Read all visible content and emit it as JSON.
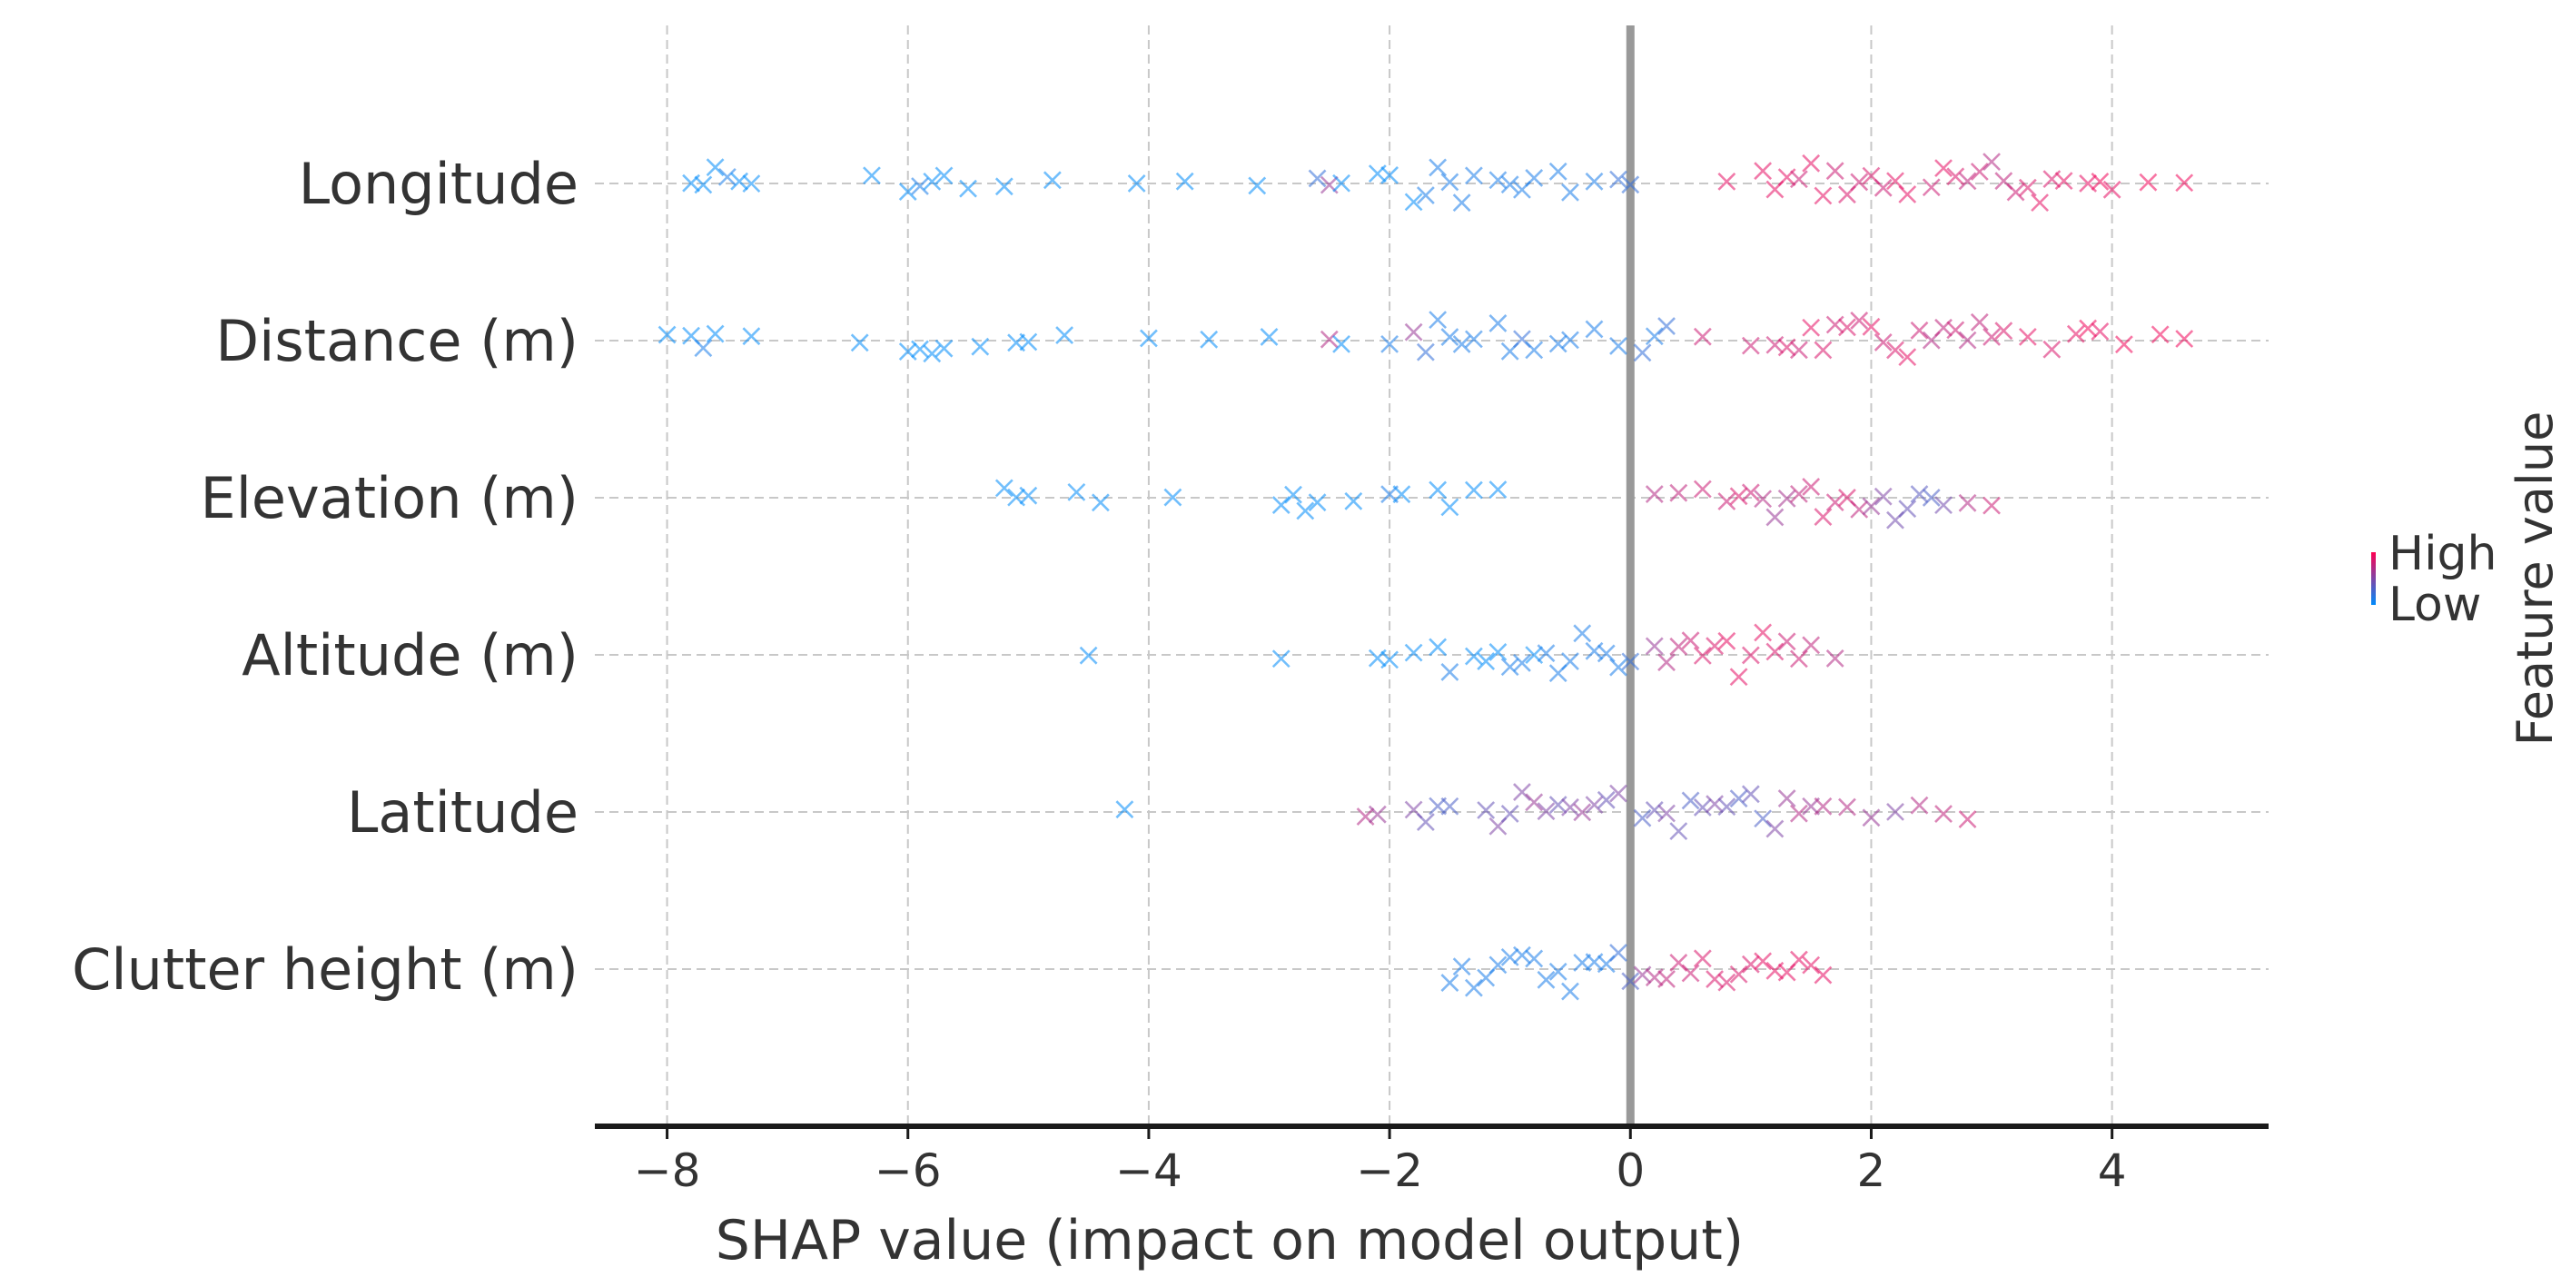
{
  "chart_data": {
    "type": "scatter",
    "subtype": "shap-beeswarm",
    "marker": "x",
    "xlabel": "SHAP value (impact on model output)",
    "xlim": [
      -8.6,
      5.3
    ],
    "xticks": [
      -8,
      -6,
      -4,
      -2,
      0,
      2,
      4
    ],
    "xtick_labels": [
      "−8",
      "−6",
      "−4",
      "−2",
      "0",
      "2",
      "4"
    ],
    "grid": true,
    "zero_line": true,
    "colors": {
      "high": "#ff0052",
      "low": "#008bfb",
      "grid": "#c8c8c8",
      "zero": "#999999",
      "axis": "#1a1a1a",
      "text": "#333333"
    },
    "legend": {
      "title": "Feature value",
      "high_label": "High",
      "low_label": "Low",
      "position": "right"
    },
    "features": [
      {
        "name": "Longitude",
        "points": [
          [
            -7.8,
            0
          ],
          [
            -7.7,
            0
          ],
          [
            -7.6,
            0
          ],
          [
            -7.5,
            0.1
          ],
          [
            -7.4,
            0
          ],
          [
            -7.3,
            0
          ],
          [
            -6.3,
            0
          ],
          [
            -6.0,
            0
          ],
          [
            -5.9,
            0.1
          ],
          [
            -5.8,
            0
          ],
          [
            -5.7,
            0
          ],
          [
            -5.5,
            0
          ],
          [
            -5.2,
            0
          ],
          [
            -4.8,
            0
          ],
          [
            -4.1,
            0
          ],
          [
            -3.7,
            0
          ],
          [
            -3.1,
            0
          ],
          [
            -2.6,
            0.2
          ],
          [
            -2.5,
            0.6
          ],
          [
            -2.4,
            0
          ],
          [
            -2.1,
            0
          ],
          [
            -2.0,
            0
          ],
          [
            -1.8,
            0
          ],
          [
            -1.7,
            0.1
          ],
          [
            -1.6,
            0.1
          ],
          [
            -1.5,
            0.1
          ],
          [
            -1.4,
            0.1
          ],
          [
            -1.3,
            0.1
          ],
          [
            -1.1,
            0.1
          ],
          [
            -1.0,
            0.1
          ],
          [
            -0.9,
            0.1
          ],
          [
            -0.8,
            0.1
          ],
          [
            -0.6,
            0.1
          ],
          [
            -0.5,
            0.1
          ],
          [
            -0.3,
            0.1
          ],
          [
            -0.1,
            0.2
          ],
          [
            0.0,
            0.2
          ],
          [
            0.8,
            0.9
          ],
          [
            1.1,
            0.9
          ],
          [
            1.2,
            0.9
          ],
          [
            1.3,
            0.9
          ],
          [
            1.4,
            0.8
          ],
          [
            1.5,
            0.9
          ],
          [
            1.6,
            0.9
          ],
          [
            1.7,
            0.8
          ],
          [
            1.8,
            0.85
          ],
          [
            1.9,
            0.8
          ],
          [
            2.0,
            0.85
          ],
          [
            2.1,
            0.8
          ],
          [
            2.2,
            0.9
          ],
          [
            2.3,
            0.9
          ],
          [
            2.5,
            0.8
          ],
          [
            2.6,
            0.9
          ],
          [
            2.7,
            0.85
          ],
          [
            2.8,
            0.75
          ],
          [
            2.9,
            0.8
          ],
          [
            3.0,
            0.7
          ],
          [
            3.1,
            0.75
          ],
          [
            3.2,
            0.8
          ],
          [
            3.3,
            0.85
          ],
          [
            3.4,
            0.9
          ],
          [
            3.5,
            0.85
          ],
          [
            3.6,
            0.9
          ],
          [
            3.8,
            0.9
          ],
          [
            3.9,
            0.95
          ],
          [
            4.0,
            0.9
          ],
          [
            4.3,
            0.95
          ],
          [
            4.6,
            0.95
          ]
        ]
      },
      {
        "name": "Distance (m)",
        "points": [
          [
            -8.0,
            0
          ],
          [
            -7.8,
            0
          ],
          [
            -7.7,
            0.1
          ],
          [
            -7.6,
            0
          ],
          [
            -7.3,
            0
          ],
          [
            -6.4,
            0
          ],
          [
            -6.0,
            0
          ],
          [
            -5.9,
            0
          ],
          [
            -5.8,
            0
          ],
          [
            -5.7,
            0
          ],
          [
            -5.4,
            0
          ],
          [
            -5.1,
            0
          ],
          [
            -5.0,
            0
          ],
          [
            -4.7,
            0
          ],
          [
            -4.0,
            0
          ],
          [
            -3.5,
            0
          ],
          [
            -3.0,
            0
          ],
          [
            -2.5,
            0.7
          ],
          [
            -2.4,
            0
          ],
          [
            -2.0,
            0.1
          ],
          [
            -1.8,
            0.6
          ],
          [
            -1.7,
            0.2
          ],
          [
            -1.6,
            0.1
          ],
          [
            -1.5,
            0.1
          ],
          [
            -1.4,
            0.1
          ],
          [
            -1.3,
            0.1
          ],
          [
            -1.1,
            0.1
          ],
          [
            -1.0,
            0.1
          ],
          [
            -0.9,
            0.2
          ],
          [
            -0.8,
            0.1
          ],
          [
            -0.6,
            0.1
          ],
          [
            -0.5,
            0.1
          ],
          [
            -0.3,
            0.1
          ],
          [
            -0.1,
            0.1
          ],
          [
            0.1,
            0.2
          ],
          [
            0.2,
            0.1
          ],
          [
            0.3,
            0.2
          ],
          [
            0.6,
            0.8
          ],
          [
            1.0,
            0.8
          ],
          [
            1.2,
            0.8
          ],
          [
            1.3,
            0.85
          ],
          [
            1.4,
            0.8
          ],
          [
            1.5,
            0.9
          ],
          [
            1.6,
            0.85
          ],
          [
            1.7,
            0.8
          ],
          [
            1.8,
            0.85
          ],
          [
            1.9,
            0.8
          ],
          [
            2.0,
            0.9
          ],
          [
            2.1,
            0.8
          ],
          [
            2.2,
            0.85
          ],
          [
            2.3,
            0.9
          ],
          [
            2.4,
            0.8
          ],
          [
            2.5,
            0.7
          ],
          [
            2.6,
            0.75
          ],
          [
            2.7,
            0.8
          ],
          [
            2.8,
            0.7
          ],
          [
            2.9,
            0.75
          ],
          [
            3.0,
            0.8
          ],
          [
            3.1,
            0.85
          ],
          [
            3.3,
            0.9
          ],
          [
            3.5,
            0.85
          ],
          [
            3.7,
            0.9
          ],
          [
            3.8,
            0.95
          ],
          [
            3.9,
            0.9
          ],
          [
            4.1,
            0.95
          ],
          [
            4.4,
            0.95
          ],
          [
            4.6,
            0.95
          ]
        ]
      },
      {
        "name": "Elevation (m)",
        "points": [
          [
            -5.2,
            0
          ],
          [
            -5.1,
            0
          ],
          [
            -5.0,
            0
          ],
          [
            -4.6,
            0
          ],
          [
            -4.4,
            0
          ],
          [
            -3.8,
            0
          ],
          [
            -2.9,
            0
          ],
          [
            -2.8,
            0
          ],
          [
            -2.7,
            0
          ],
          [
            -2.6,
            0
          ],
          [
            -2.3,
            0
          ],
          [
            -2.0,
            0.1
          ],
          [
            -1.9,
            0
          ],
          [
            -1.6,
            0
          ],
          [
            -1.5,
            0
          ],
          [
            -1.3,
            0
          ],
          [
            -1.1,
            0
          ],
          [
            0.2,
            0.7
          ],
          [
            0.4,
            0.75
          ],
          [
            0.6,
            0.8
          ],
          [
            0.8,
            0.8
          ],
          [
            0.9,
            0.85
          ],
          [
            1.0,
            0.8
          ],
          [
            1.1,
            0.7
          ],
          [
            1.2,
            0.6
          ],
          [
            1.3,
            0.65
          ],
          [
            1.4,
            0.75
          ],
          [
            1.5,
            0.8
          ],
          [
            1.6,
            0.85
          ],
          [
            1.7,
            0.8
          ],
          [
            1.8,
            0.85
          ],
          [
            1.9,
            0.75
          ],
          [
            2.0,
            0.6
          ],
          [
            2.1,
            0.5
          ],
          [
            2.2,
            0.45
          ],
          [
            2.3,
            0.4
          ],
          [
            2.4,
            0.35
          ],
          [
            2.5,
            0.3
          ],
          [
            2.6,
            0.45
          ],
          [
            2.8,
            0.7
          ],
          [
            3.0,
            0.8
          ]
        ]
      },
      {
        "name": "Altitude (m)",
        "points": [
          [
            -4.5,
            0
          ],
          [
            -2.9,
            0
          ],
          [
            -2.1,
            0
          ],
          [
            -2.0,
            0
          ],
          [
            -1.8,
            0
          ],
          [
            -1.6,
            0
          ],
          [
            -1.5,
            0.1
          ],
          [
            -1.3,
            0
          ],
          [
            -1.2,
            0
          ],
          [
            -1.1,
            0
          ],
          [
            -1.0,
            0.1
          ],
          [
            -0.9,
            0.1
          ],
          [
            -0.8,
            0
          ],
          [
            -0.7,
            0.1
          ],
          [
            -0.6,
            0.1
          ],
          [
            -0.5,
            0.1
          ],
          [
            -0.4,
            0.1
          ],
          [
            -0.3,
            0.1
          ],
          [
            -0.2,
            0.1
          ],
          [
            -0.1,
            0.1
          ],
          [
            0.0,
            0.2
          ],
          [
            0.2,
            0.6
          ],
          [
            0.3,
            0.7
          ],
          [
            0.4,
            0.75
          ],
          [
            0.5,
            0.8
          ],
          [
            0.6,
            0.85
          ],
          [
            0.7,
            0.85
          ],
          [
            0.8,
            0.9
          ],
          [
            0.9,
            0.9
          ],
          [
            1.0,
            0.85
          ],
          [
            1.1,
            0.9
          ],
          [
            1.2,
            0.85
          ],
          [
            1.3,
            0.8
          ],
          [
            1.4,
            0.8
          ],
          [
            1.5,
            0.75
          ],
          [
            1.7,
            0.7
          ]
        ]
      },
      {
        "name": "Latitude",
        "points": [
          [
            -4.2,
            0
          ],
          [
            -2.2,
            0.7
          ],
          [
            -2.1,
            0.6
          ],
          [
            -1.8,
            0.5
          ],
          [
            -1.7,
            0.4
          ],
          [
            -1.6,
            0.3
          ],
          [
            -1.5,
            0.3
          ],
          [
            -1.2,
            0.4
          ],
          [
            -1.1,
            0.5
          ],
          [
            -1.0,
            0.4
          ],
          [
            -0.9,
            0.5
          ],
          [
            -0.8,
            0.6
          ],
          [
            -0.7,
            0.5
          ],
          [
            -0.6,
            0.4
          ],
          [
            -0.5,
            0.5
          ],
          [
            -0.4,
            0.6
          ],
          [
            -0.3,
            0.5
          ],
          [
            -0.2,
            0.4
          ],
          [
            -0.1,
            0.5
          ],
          [
            0.1,
            0.3
          ],
          [
            0.2,
            0.4
          ],
          [
            0.3,
            0.5
          ],
          [
            0.4,
            0.4
          ],
          [
            0.5,
            0.3
          ],
          [
            0.6,
            0.4
          ],
          [
            0.7,
            0.5
          ],
          [
            0.8,
            0.4
          ],
          [
            0.9,
            0.3
          ],
          [
            1.0,
            0.4
          ],
          [
            1.1,
            0.3
          ],
          [
            1.2,
            0.5
          ],
          [
            1.3,
            0.6
          ],
          [
            1.4,
            0.7
          ],
          [
            1.5,
            0.6
          ],
          [
            1.6,
            0.7
          ],
          [
            1.8,
            0.7
          ],
          [
            2.0,
            0.6
          ],
          [
            2.2,
            0.5
          ],
          [
            2.4,
            0.7
          ],
          [
            2.6,
            0.75
          ],
          [
            2.8,
            0.8
          ]
        ]
      },
      {
        "name": "Clutter height (m)",
        "points": [
          [
            -1.5,
            0.1
          ],
          [
            -1.4,
            0.1
          ],
          [
            -1.3,
            0.1
          ],
          [
            -1.2,
            0.1
          ],
          [
            -1.1,
            0.1
          ],
          [
            -1.0,
            0.1
          ],
          [
            -0.9,
            0.1
          ],
          [
            -0.8,
            0.1
          ],
          [
            -0.7,
            0.1
          ],
          [
            -0.6,
            0.1
          ],
          [
            -0.5,
            0.1
          ],
          [
            -0.4,
            0.1
          ],
          [
            -0.3,
            0.1
          ],
          [
            -0.2,
            0.1
          ],
          [
            -0.1,
            0.2
          ],
          [
            0.0,
            0.3
          ],
          [
            0.1,
            0.6
          ],
          [
            0.2,
            0.7
          ],
          [
            0.3,
            0.75
          ],
          [
            0.4,
            0.8
          ],
          [
            0.5,
            0.8
          ],
          [
            0.6,
            0.85
          ],
          [
            0.7,
            0.85
          ],
          [
            0.8,
            0.85
          ],
          [
            0.9,
            0.85
          ],
          [
            1.0,
            0.85
          ],
          [
            1.1,
            0.9
          ],
          [
            1.2,
            0.9
          ],
          [
            1.3,
            0.9
          ],
          [
            1.4,
            0.9
          ],
          [
            1.5,
            0.9
          ],
          [
            1.6,
            0.9
          ]
        ]
      }
    ]
  }
}
